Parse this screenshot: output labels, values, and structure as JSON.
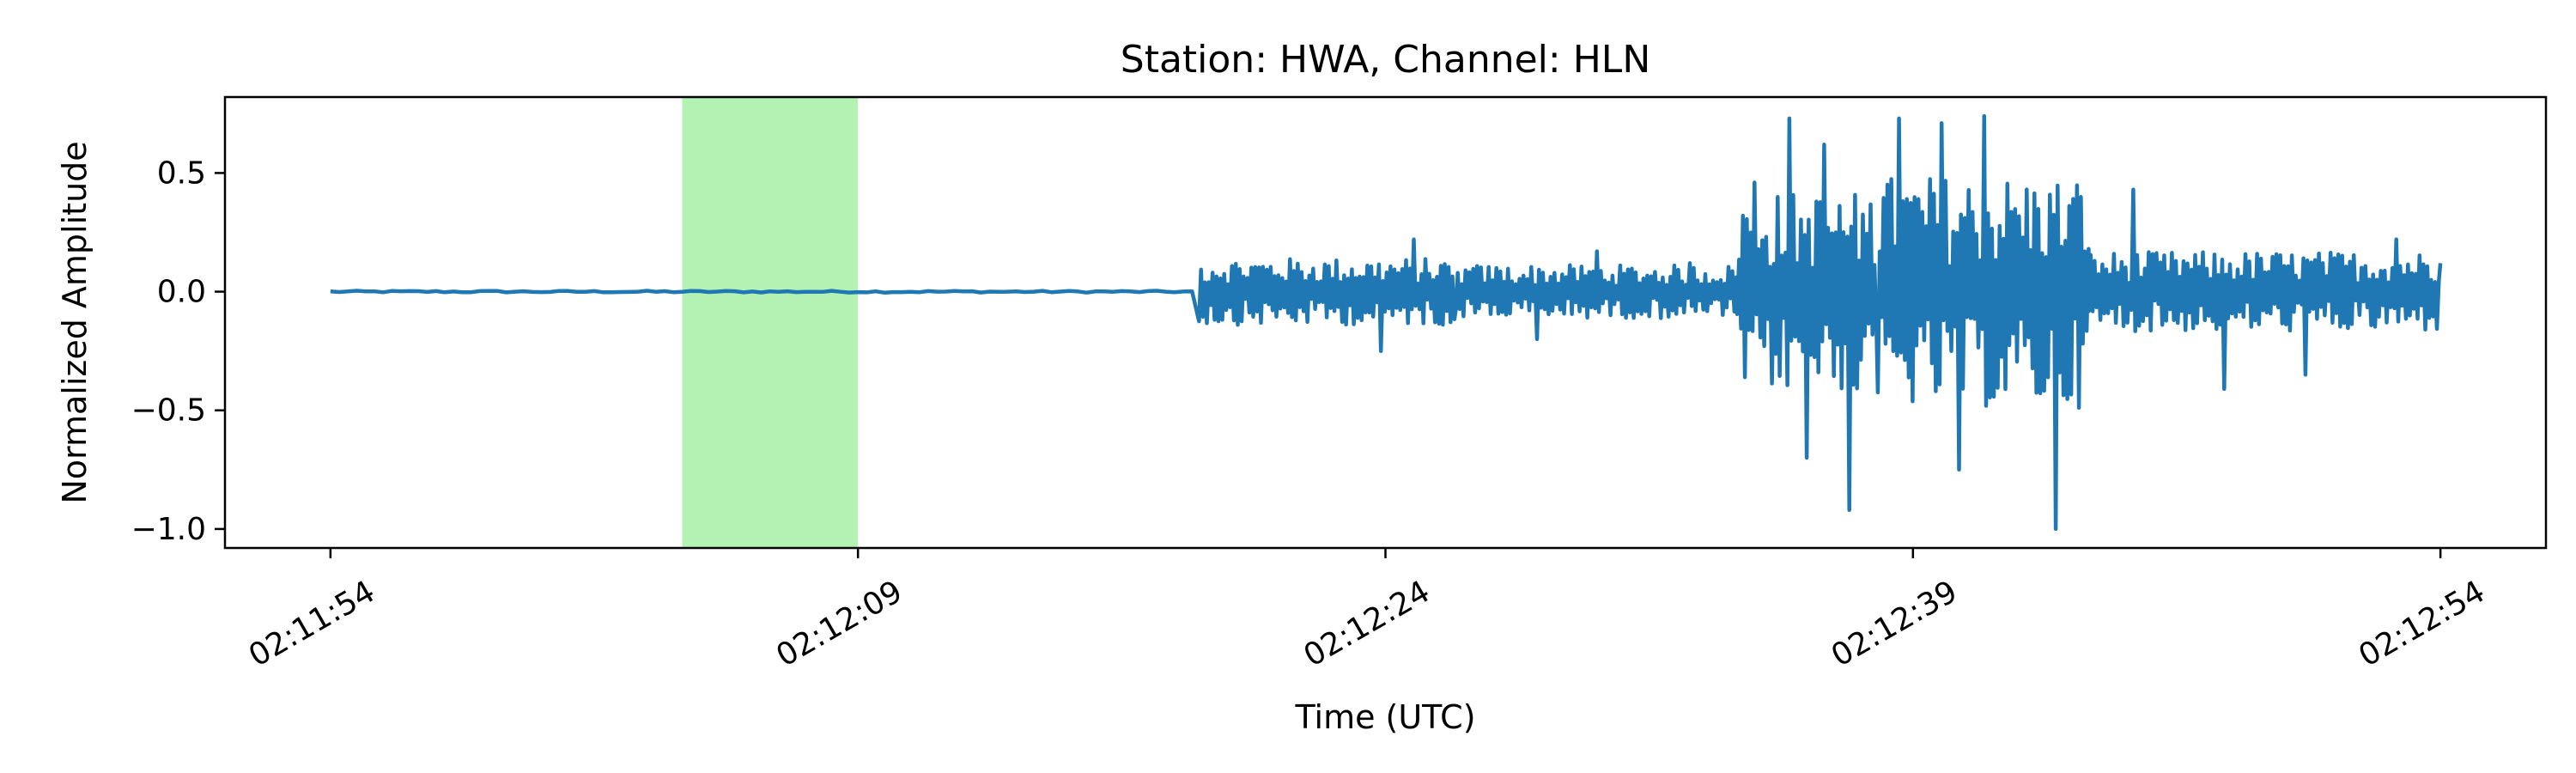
{
  "chart_data": {
    "type": "line",
    "title": "Station: HWA, Channel: HLN",
    "xlabel": "Time (UTC)",
    "ylabel": "Normalized Amplitude",
    "x_start": "02:11:54",
    "x_end": "02:12:54",
    "xlim": [
      "02:11:51",
      "02:12:57"
    ],
    "ylim": [
      -1.08,
      0.82
    ],
    "xticks": [
      "02:11:54",
      "02:12:09",
      "02:12:24",
      "02:12:39",
      "02:12:54"
    ],
    "yticks": [
      0.5,
      0.0,
      -0.5,
      -1.0
    ],
    "ytick_labels": [
      "0.5",
      "0.0",
      "−0.5",
      "−1.0"
    ],
    "highlight_span": {
      "start": "02:12:04",
      "end": "02:12:09",
      "color": "#b3f2b3"
    },
    "series": [
      {
        "color": "#1f77b4",
        "segments": [
          {
            "start": "02:11:54",
            "end": "02:12:18.7",
            "amplitude": 0.004,
            "peak_up": [],
            "peak_down": []
          },
          {
            "start": "02:12:18.7",
            "end": "02:12:26",
            "amplitude": 0.1,
            "peak_up": [
              0.15,
              0.25,
              0.22
            ],
            "peak_down": [
              -0.2,
              -0.25
            ]
          },
          {
            "start": "02:12:26",
            "end": "02:12:34",
            "amplitude": 0.08,
            "peak_up": [
              0.18,
              0.17,
              0.12
            ],
            "peak_down": [
              -0.2,
              -0.18
            ]
          },
          {
            "start": "02:12:34",
            "end": "02:12:38",
            "amplitude": 0.3,
            "peak_up": [
              0.46,
              0.73,
              0.62,
              0.29
            ],
            "peak_down": [
              -0.43,
              -0.7,
              -0.92
            ]
          },
          {
            "start": "02:12:38",
            "end": "02:12:44",
            "amplitude": 0.35,
            "peak_up": [
              0.73,
              0.71,
              0.74,
              0.56,
              0.35
            ],
            "peak_down": [
              -0.66,
              -0.75,
              -0.85,
              -1.0
            ]
          },
          {
            "start": "02:12:44",
            "end": "02:12:54",
            "amplitude": 0.12,
            "peak_up": [
              0.43,
              0.26,
              0.25,
              0.22
            ],
            "peak_down": [
              -0.33,
              -0.41,
              -0.35,
              -0.32
            ]
          }
        ]
      }
    ]
  }
}
